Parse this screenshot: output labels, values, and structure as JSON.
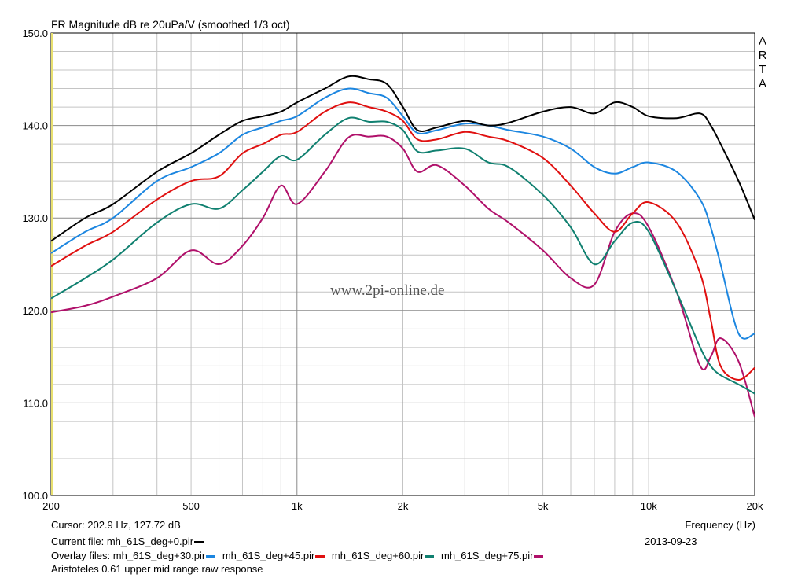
{
  "chart_data": {
    "type": "line",
    "title": "FR Magnitude dB re 20uPa/V (smoothed 1/3 oct)",
    "brand": "ARTA",
    "watermark": "www.2pi-online.de",
    "xlabel": "Frequency (Hz)",
    "x_scale": "log",
    "xlim": [
      200,
      20000
    ],
    "ylim": [
      100,
      150
    ],
    "x_ticks": [
      {
        "value": 200,
        "label": "200"
      },
      {
        "value": 500,
        "label": "500"
      },
      {
        "value": 1000,
        "label": "1k"
      },
      {
        "value": 2000,
        "label": "2k"
      },
      {
        "value": 5000,
        "label": "5k"
      },
      {
        "value": 10000,
        "label": "10k"
      },
      {
        "value": 20000,
        "label": "20k"
      }
    ],
    "y_ticks": [
      {
        "value": 100,
        "label": "100.0"
      },
      {
        "value": 110,
        "label": "110.0"
      },
      {
        "value": 120,
        "label": "120.0"
      },
      {
        "value": 130,
        "label": "130.0"
      },
      {
        "value": 140,
        "label": "140.0"
      },
      {
        "value": 150,
        "label": "150.0"
      }
    ],
    "grid": true,
    "x": [
      200,
      250,
      300,
      400,
      500,
      600,
      700,
      800,
      900,
      1000,
      1200,
      1400,
      1600,
      1800,
      2000,
      2200,
      2500,
      3000,
      3500,
      4000,
      5000,
      6000,
      7000,
      8000,
      9000,
      10000,
      12000,
      14000,
      15000,
      16000,
      18000,
      20000
    ],
    "series": [
      {
        "name": "mh_61S_deg+0.pir",
        "color": "#000000",
        "values": [
          127.5,
          130.0,
          131.5,
          135.0,
          137.0,
          139.0,
          140.5,
          141.0,
          141.5,
          142.5,
          144.0,
          145.3,
          145.0,
          144.5,
          142.0,
          139.5,
          139.8,
          140.5,
          140.0,
          140.3,
          141.5,
          142.0,
          141.3,
          142.5,
          142.0,
          141.0,
          140.8,
          141.3,
          140.0,
          138.0,
          134.0,
          129.8
        ]
      },
      {
        "name": "mh_61S_deg+30.pir",
        "color": "#1c86e0",
        "values": [
          126.2,
          128.5,
          130.0,
          134.0,
          135.5,
          137.0,
          139.0,
          139.8,
          140.5,
          141.0,
          143.0,
          144.0,
          143.5,
          143.0,
          141.0,
          139.2,
          139.5,
          140.2,
          140.0,
          139.5,
          138.8,
          137.5,
          135.5,
          134.8,
          135.5,
          136.0,
          135.0,
          132.0,
          129.0,
          125.0,
          117.5,
          117.5
        ]
      },
      {
        "name": "mh_61S_deg+45.pir",
        "color": "#e01010",
        "values": [
          124.8,
          127.0,
          128.5,
          132.0,
          134.0,
          134.5,
          137.0,
          138.0,
          139.0,
          139.3,
          141.5,
          142.5,
          142.0,
          141.5,
          140.5,
          138.5,
          138.5,
          139.3,
          138.8,
          138.3,
          136.5,
          133.5,
          130.5,
          128.5,
          130.5,
          131.7,
          129.5,
          124.0,
          119.0,
          114.0,
          112.5,
          113.8
        ]
      },
      {
        "name": "mh_61S_deg+60.pir",
        "color": "#108070",
        "values": [
          121.3,
          123.5,
          125.5,
          129.5,
          131.5,
          131.0,
          133.0,
          135.0,
          136.7,
          136.3,
          139.0,
          140.8,
          140.4,
          140.4,
          139.5,
          137.2,
          137.3,
          137.5,
          136.0,
          135.5,
          132.5,
          129.0,
          125.0,
          127.5,
          129.5,
          128.5,
          122.0,
          116.0,
          114.0,
          113.0,
          112.0,
          111.0
        ]
      },
      {
        "name": "mh_61S_deg+75.pir",
        "color": "#b0106a",
        "values": [
          119.8,
          120.5,
          121.5,
          123.5,
          126.5,
          125.0,
          127.0,
          130.0,
          133.5,
          131.5,
          135.0,
          138.7,
          138.8,
          138.8,
          137.5,
          135.0,
          135.7,
          133.5,
          131.0,
          129.5,
          126.5,
          123.5,
          122.8,
          128.5,
          130.5,
          129.0,
          122.0,
          114.0,
          115.0,
          117.0,
          114.5,
          108.5
        ]
      }
    ]
  },
  "info": {
    "cursor": "Cursor: 202.9 Hz, 127.72 dB",
    "current_file_label": "Current file:",
    "current_file": "mh_61S_deg+0.pir",
    "overlay_label": "Overlay files:",
    "overlay_files": [
      "mh_61S_deg+30.pir",
      "mh_61S_deg+45.pir",
      "mh_61S_deg+60.pir",
      "mh_61S_deg+75.pir"
    ],
    "date": "2013-09-23",
    "description": "Aristoteles 0.61 upper mid range raw response"
  }
}
